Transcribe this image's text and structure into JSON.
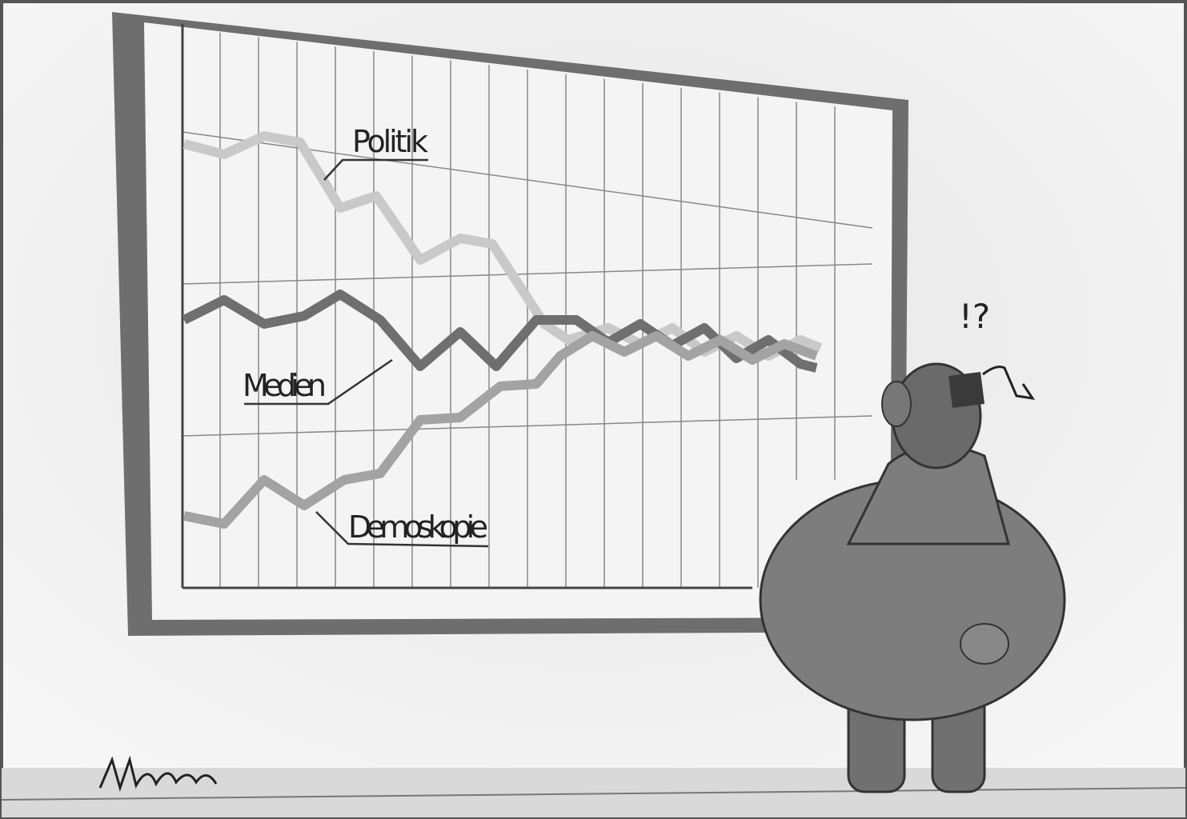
{
  "cartoon": {
    "labels": {
      "politik": "Politik",
      "medien": "Medien",
      "demoskopie": "Demoskopie"
    },
    "exclamation": "!?"
  }
}
